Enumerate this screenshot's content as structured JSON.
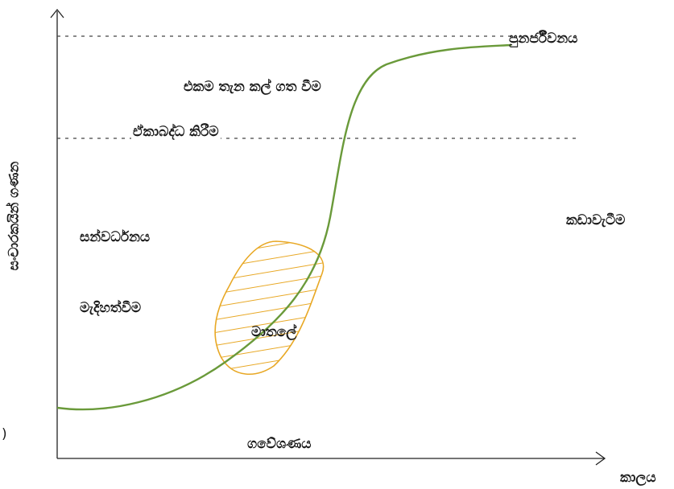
{
  "axes": {
    "x_label": "කාලය",
    "y_label": "සංචාරකයින් ගණන"
  },
  "stages": {
    "exploration": "ගවේශණය",
    "involvement": "මැදිහත්වීම",
    "development": "සන්වර්ධනය",
    "consolidation": "ඒකාබද්ධ කිරීම",
    "stagnation": "එකම තැන කල් ගත වීම",
    "rejuvenation": "පුනර්ජීවනය",
    "decline": "කඩාවැටීම",
    "matale": "මාතලේ"
  },
  "edge_mark": ")",
  "colors": {
    "curve": "#6a9a3a",
    "region": "#e8a825",
    "axis": "#222222",
    "dashed": "#444444"
  }
}
